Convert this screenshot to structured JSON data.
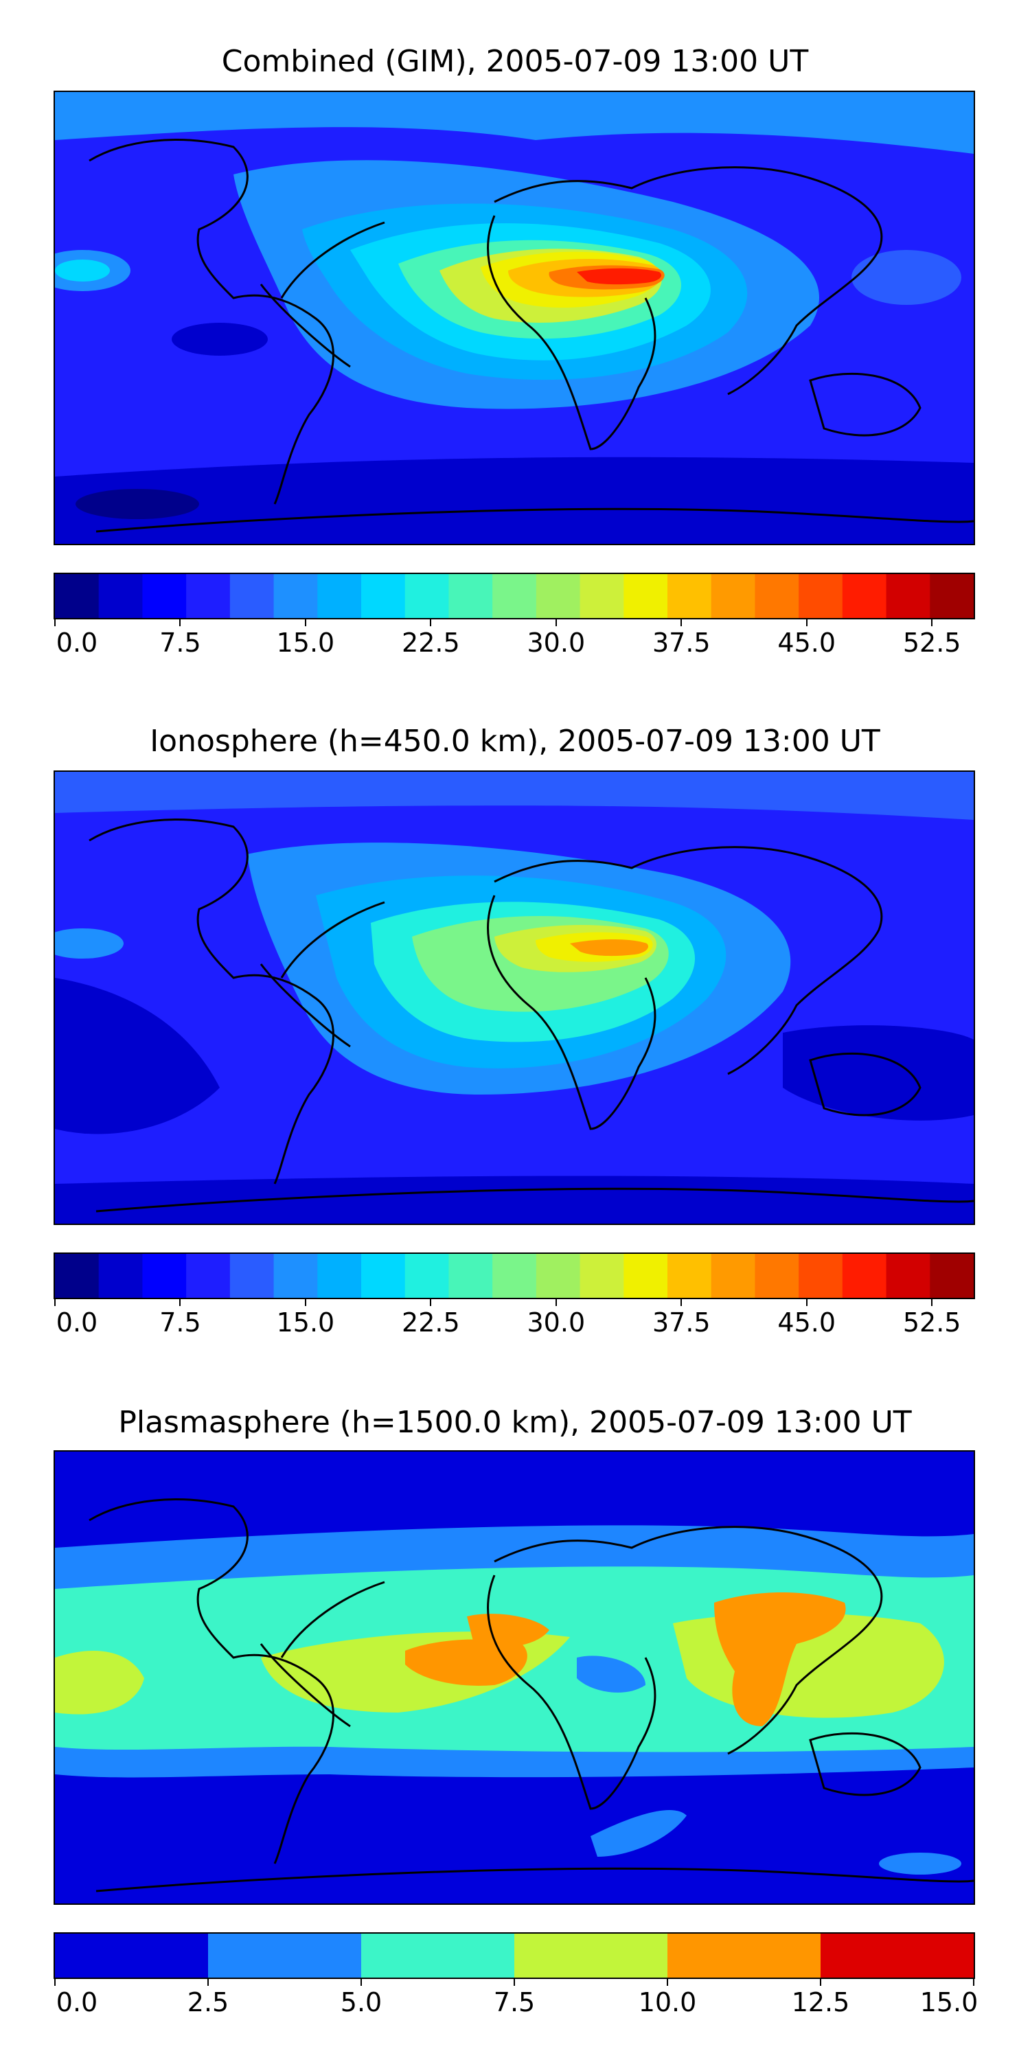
{
  "panels": [
    {
      "id": "combined",
      "title": "Combined (GIM), 2005-07-09 13:00 UT",
      "colors": [
        "#00008b",
        "#0000cd",
        "#0000ff",
        "#1e1eff",
        "#2a5cff",
        "#1e90ff",
        "#00b0ff",
        "#00d8ff",
        "#20f0e0",
        "#48f5b8",
        "#7af58a",
        "#a0f060",
        "#cdf03a",
        "#f0f000",
        "#ffc000",
        "#ff9a00",
        "#ff7800",
        "#ff4c00",
        "#ff1c00",
        "#d20000",
        "#a00000"
      ],
      "ticks": [
        "0.0",
        "7.5",
        "15.0",
        "22.5",
        "30.0",
        "37.5",
        "45.0",
        "52.5"
      ],
      "range": [
        0,
        55
      ],
      "tick_values": [
        0,
        7.5,
        15,
        22.5,
        30,
        37.5,
        45,
        52.5
      ]
    },
    {
      "id": "ionosphere",
      "title": "Ionosphere  (h=450.0 km), 2005-07-09 13:00 UT",
      "colors": [
        "#00008b",
        "#0000cd",
        "#0000ff",
        "#1e1eff",
        "#2a5cff",
        "#1e90ff",
        "#00b0ff",
        "#00d8ff",
        "#20f0e0",
        "#48f5b8",
        "#7af58a",
        "#a0f060",
        "#cdf03a",
        "#f0f000",
        "#ffc000",
        "#ff9a00",
        "#ff7800",
        "#ff4c00",
        "#ff1c00",
        "#d20000",
        "#a00000"
      ],
      "ticks": [
        "0.0",
        "7.5",
        "15.0",
        "22.5",
        "30.0",
        "37.5",
        "45.0",
        "52.5"
      ],
      "range": [
        0,
        55
      ],
      "tick_values": [
        0,
        7.5,
        15,
        22.5,
        30,
        37.5,
        45,
        52.5
      ]
    },
    {
      "id": "plasmasphere",
      "title": "Plasmasphere (h=1500.0 km), 2005-07-09 13:00 UT",
      "colors": [
        "#0000dc",
        "#1e86ff",
        "#3cf5c8",
        "#c2f53a",
        "#ff9600",
        "#dd0000"
      ],
      "ticks": [
        "0.0",
        "2.5",
        "5.0",
        "7.5",
        "10.0",
        "12.5",
        "15.0"
      ],
      "range": [
        0,
        15
      ],
      "tick_values": [
        0,
        2.5,
        5,
        7.5,
        10,
        12.5,
        15
      ]
    }
  ]
}
